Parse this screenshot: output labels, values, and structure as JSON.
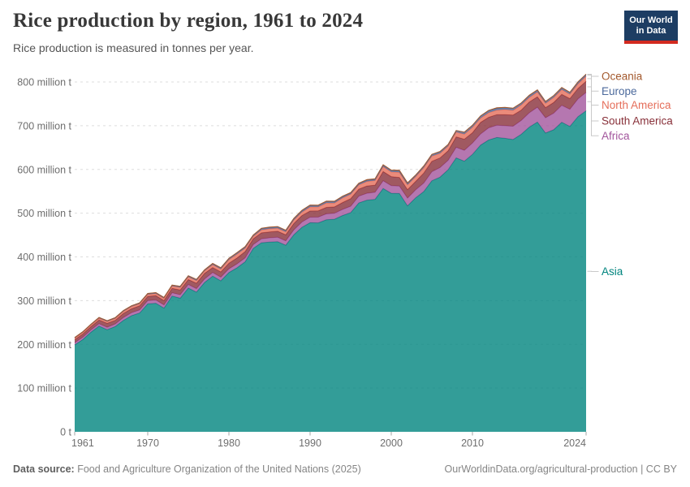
{
  "header": {
    "title": "Rice production by region, 1961 to 2024",
    "subtitle": "Rice production is measured in tonnes per year.",
    "logo": {
      "line1": "Our World",
      "line2": "in Data",
      "bg": "#1D3D63",
      "accent": "#D22A20"
    }
  },
  "footer": {
    "source_label": "Data source:",
    "source_text": "Food and Agriculture Organization of the United Nations (2025)",
    "credit": "OurWorldinData.org/agricultural-production | CC BY"
  },
  "chart_data": {
    "type": "area",
    "stacked": true,
    "title": "Rice production by region, 1961 to 2024",
    "ylabel": "tonnes per year",
    "xlabel": "",
    "unit": "million tonnes",
    "grid": "dashed-horizontal",
    "legend_position": "right",
    "xlim": [
      1961,
      2024
    ],
    "ylim": [
      0,
      800
    ],
    "x_ticks": [
      1961,
      1970,
      1980,
      1990,
      2000,
      2010,
      2024
    ],
    "y_ticks": [
      {
        "value": 0,
        "label": "0 t"
      },
      {
        "value": 100,
        "label": "100 million t"
      },
      {
        "value": 200,
        "label": "200 million t"
      },
      {
        "value": 300,
        "label": "300 million t"
      },
      {
        "value": 400,
        "label": "400 million t"
      },
      {
        "value": 500,
        "label": "500 million t"
      },
      {
        "value": 600,
        "label": "600 million t"
      },
      {
        "value": 700,
        "label": "700 million t"
      },
      {
        "value": 800,
        "label": "800 million t"
      }
    ],
    "x": [
      1961,
      1962,
      1963,
      1964,
      1965,
      1966,
      1967,
      1968,
      1969,
      1970,
      1971,
      1972,
      1973,
      1974,
      1975,
      1976,
      1977,
      1978,
      1979,
      1980,
      1981,
      1982,
      1983,
      1984,
      1985,
      1986,
      1987,
      1988,
      1989,
      1990,
      1991,
      1992,
      1993,
      1994,
      1995,
      1996,
      1997,
      1998,
      1999,
      2000,
      2001,
      2002,
      2003,
      2004,
      2005,
      2006,
      2007,
      2008,
      2009,
      2010,
      2011,
      2012,
      2013,
      2014,
      2015,
      2016,
      2017,
      2018,
      2019,
      2020,
      2021,
      2022,
      2023,
      2024
    ],
    "series": [
      {
        "name": "Asia",
        "color": "#00847E",
        "values": [
          198.8,
          211.1,
          227.7,
          241.8,
          233.5,
          240.8,
          254.9,
          265.7,
          271.7,
          292.5,
          294.0,
          282.9,
          310.5,
          305.6,
          328.8,
          319.4,
          341.6,
          356.1,
          345.2,
          364.1,
          375.1,
          388.9,
          419.4,
          432.3,
          433.7,
          434.8,
          426.7,
          450.7,
          467.8,
          478.2,
          477.7,
          484.9,
          486.1,
          494.6,
          501.2,
          523.4,
          529.7,
          531.6,
          556.5,
          545.6,
          544.9,
          516.8,
          535.1,
          549.5,
          574.1,
          582.2,
          599.3,
          626.5,
          618.9,
          634.5,
          655.5,
          667.5,
          673.0,
          671.2,
          668.4,
          680.3,
          696.8,
          708.3,
          683.2,
          690.6,
          708.0,
          698.2,
          720.7,
          734.1
        ]
      },
      {
        "name": "Africa",
        "color": "#A2559C",
        "values": [
          4.9,
          5.1,
          5.3,
          5.4,
          5.6,
          5.9,
          6.4,
          6.6,
          7.0,
          7.4,
          7.5,
          7.2,
          7.4,
          7.9,
          8.0,
          8.1,
          7.9,
          8.2,
          8.4,
          8.6,
          8.9,
          8.8,
          8.7,
          9.0,
          9.9,
          10.2,
          10.0,
          11.1,
          12.0,
          12.6,
          13.2,
          13.4,
          13.5,
          14.0,
          14.6,
          15.5,
          15.9,
          16.2,
          17.6,
          17.4,
          17.1,
          17.5,
          18.3,
          19.4,
          20.6,
          21.9,
          21.5,
          24.1,
          24.8,
          26.0,
          25.5,
          27.7,
          28.0,
          28.8,
          30.4,
          31.5,
          32.6,
          33.9,
          34.9,
          38.0,
          38.5,
          39.5,
          40.5,
          42.0
        ]
      },
      {
        "name": "South America",
        "color": "#883039",
        "values": [
          6.9,
          7.4,
          7.5,
          8.5,
          9.1,
          8.3,
          9.5,
          9.1,
          9.5,
          9.8,
          9.7,
          10.1,
          10.2,
          10.9,
          11.5,
          12.3,
          12.8,
          11.4,
          12.1,
          13.1,
          13.6,
          14.5,
          13.4,
          13.6,
          13.3,
          13.7,
          13.9,
          14.7,
          14.8,
          14.3,
          14.5,
          15.0,
          14.8,
          15.8,
          17.5,
          16.0,
          16.6,
          16.2,
          21.1,
          20.6,
          19.8,
          19.5,
          19.2,
          22.8,
          24.0,
          22.2,
          21.8,
          24.0,
          25.4,
          23.5,
          26.5,
          24.0,
          24.4,
          25.2,
          25.5,
          23.7,
          24.9,
          23.8,
          23.2,
          24.5,
          25.1,
          24.2,
          24.0,
          25.5
        ]
      },
      {
        "name": "North America",
        "color": "#E56E5A",
        "values": [
          3.3,
          3.5,
          3.7,
          3.9,
          4.0,
          4.2,
          4.5,
          4.8,
          4.6,
          4.5,
          4.8,
          4.9,
          5.0,
          5.8,
          6.1,
          6.0,
          5.5,
          6.4,
          6.5,
          7.8,
          8.9,
          7.8,
          5.5,
          7.0,
          7.5,
          7.0,
          6.8,
          7.9,
          8.0,
          9.3,
          9.0,
          10.1,
          8.9,
          10.5,
          10.1,
          9.9,
          10.4,
          10.6,
          11.3,
          10.8,
          11.6,
          11.2,
          10.9,
          12.2,
          11.9,
          10.6,
          10.8,
          10.9,
          11.8,
          12.5,
          10.1,
          10.8,
          10.3,
          11.8,
          11.0,
          11.9,
          10.5,
          11.4,
          10.0,
          11.5,
          11.1,
          10.2,
          10.8,
          12.0
        ]
      },
      {
        "name": "Europe",
        "color": "#4C6A9C",
        "values": [
          1.5,
          1.6,
          1.6,
          1.7,
          1.7,
          1.7,
          1.8,
          1.8,
          1.9,
          1.9,
          2.0,
          2.0,
          2.1,
          2.2,
          2.1,
          2.2,
          2.1,
          2.4,
          2.4,
          2.6,
          2.7,
          2.7,
          2.6,
          2.8,
          2.9,
          2.9,
          3.0,
          3.1,
          3.2,
          3.2,
          3.1,
          3.1,
          2.9,
          2.8,
          2.6,
          2.7,
          2.8,
          2.8,
          3.0,
          3.2,
          3.1,
          3.2,
          3.2,
          3.4,
          3.4,
          3.3,
          3.4,
          3.5,
          4.2,
          4.4,
          4.3,
          4.2,
          4.0,
          4.0,
          4.1,
          4.2,
          4.1,
          4.0,
          4.1,
          4.0,
          4.1,
          3.7,
          3.8,
          3.8
        ]
      },
      {
        "name": "Oceania",
        "color": "#A3592D",
        "values": [
          0.2,
          0.2,
          0.2,
          0.2,
          0.2,
          0.2,
          0.25,
          0.3,
          0.3,
          0.3,
          0.3,
          0.3,
          0.35,
          0.4,
          0.5,
          0.5,
          0.6,
          0.6,
          0.7,
          0.7,
          0.85,
          0.9,
          0.6,
          0.9,
          0.9,
          0.85,
          0.75,
          0.85,
          0.9,
          1.0,
          0.9,
          1.1,
          1.2,
          1.1,
          1.2,
          1.0,
          1.4,
          1.4,
          1.4,
          1.1,
          1.8,
          1.3,
          0.4,
          0.6,
          0.4,
          1.0,
          0.2,
          0.02,
          0.07,
          0.2,
          0.75,
          0.95,
          1.2,
          0.85,
          0.7,
          0.3,
          0.8,
          0.64,
          0.06,
          0.06,
          0.5,
          0.7,
          0.5,
          0.6
        ]
      }
    ]
  }
}
